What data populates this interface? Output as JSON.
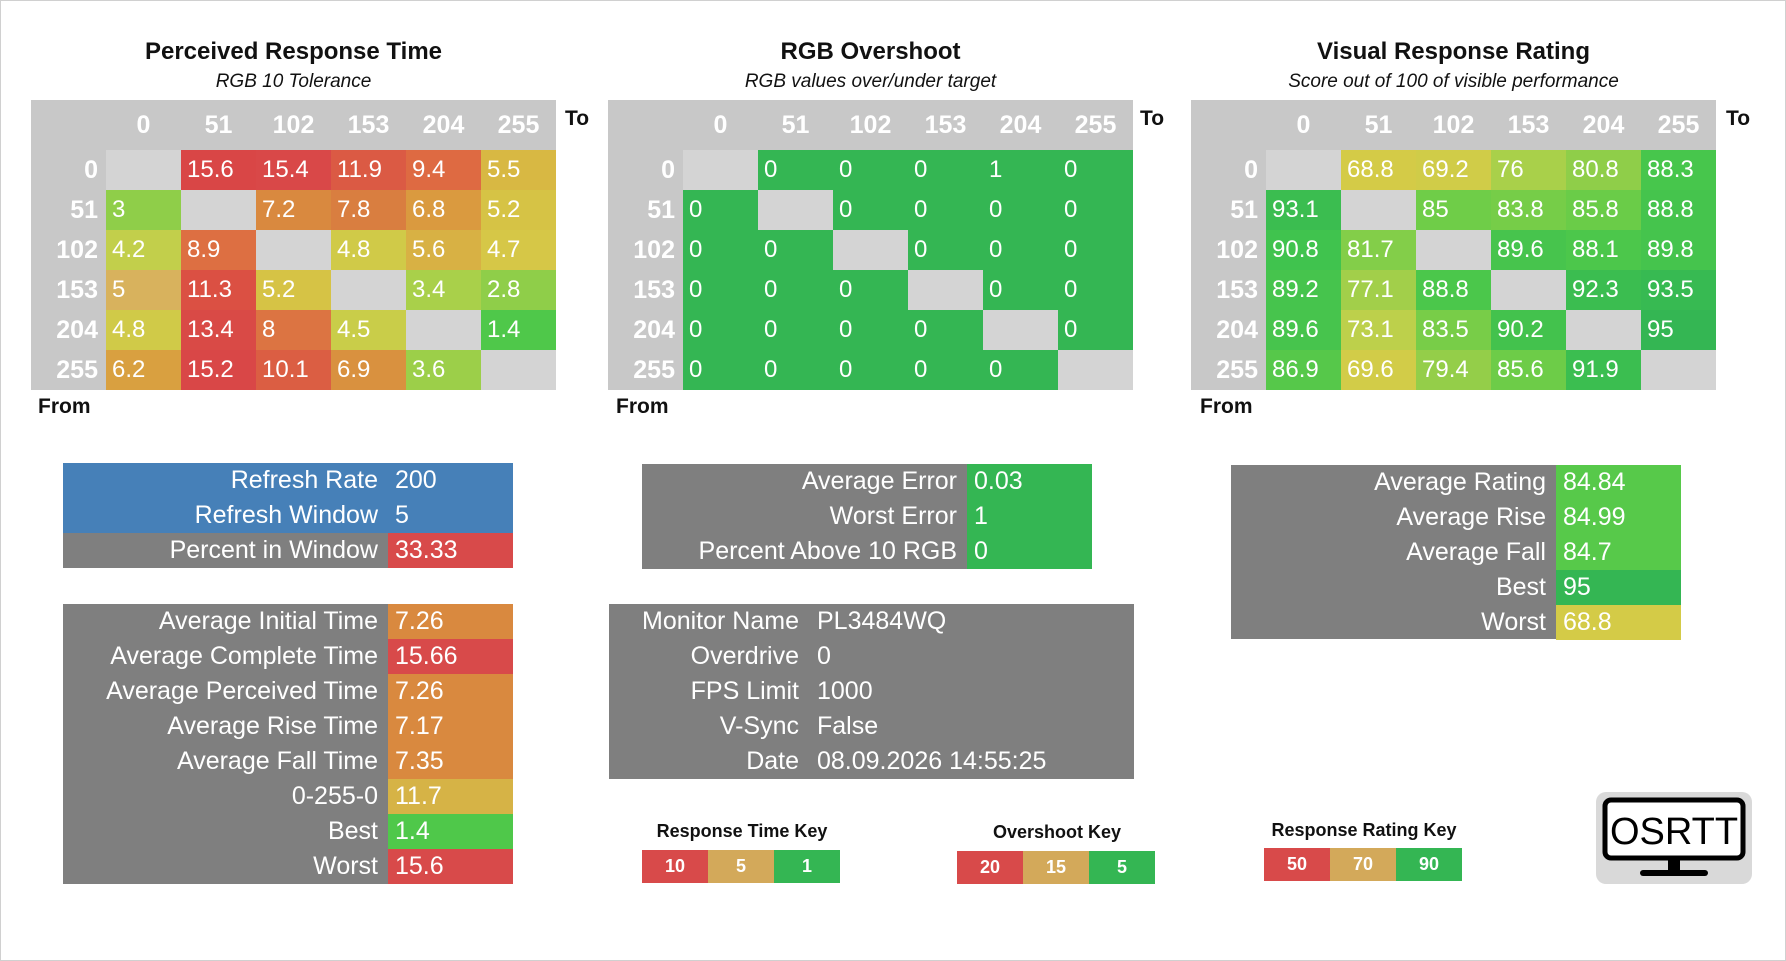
{
  "colors": {
    "red": "#d84a4a",
    "orange_red": "#de6a42",
    "orange": "#d9893f",
    "amber": "#d3a345",
    "yellow": "#d6cb47",
    "yellow_green": "#c2cf4b",
    "light_green": "#8fce49",
    "green": "#57c94a",
    "deep_green": "#34b653",
    "blue": "#4680b8",
    "grey": "#7f7f7f",
    "diag": "#d4d4d4"
  },
  "heatmaps": [
    {
      "title": "Perceived Response Time",
      "subtitle": "RGB 10 Tolerance",
      "to_label": "To",
      "from_label": "From",
      "headers": [
        "0",
        "51",
        "102",
        "153",
        "204",
        "255"
      ],
      "rows": [
        [
          "",
          "15.6",
          "15.4",
          "11.9",
          "9.4",
          "5.5"
        ],
        [
          "3",
          "",
          "7.2",
          "7.8",
          "6.8",
          "5.2"
        ],
        [
          "4.2",
          "8.9",
          "",
          "4.8",
          "5.6",
          "4.7"
        ],
        [
          "5",
          "11.3",
          "5.2",
          "",
          "3.4",
          "2.8"
        ],
        [
          "4.8",
          "13.4",
          "8",
          "4.5",
          "",
          "1.4"
        ],
        [
          "6.2",
          "15.2",
          "10.1",
          "6.9",
          "3.6",
          ""
        ]
      ],
      "cell_colors": [
        [
          "diag",
          "#d94646",
          "#d94848",
          "#db5a44",
          "#de6a42",
          "#d8b843"
        ],
        [
          "#8fce49",
          "diag",
          "#d9893f",
          "#d97e40",
          "#da9a3f",
          "#d6c345"
        ],
        [
          "#c2cf4b",
          "#dd6f42",
          "diag",
          "#d0ca48",
          "#d8b144",
          "#d6c747"
        ],
        [
          "#d8b25d",
          "#db5043",
          "#d6c345",
          "diag",
          "#a9d04a",
          "#8fce49"
        ],
        [
          "#d0ca48",
          "#d94a46",
          "#dc7442",
          "#c9cd49",
          "diag",
          "#4fc84a"
        ],
        [
          "#d9a040",
          "#d94747",
          "#db5e43",
          "#d9913f",
          "#9ccf49",
          "diag"
        ]
      ]
    },
    {
      "title": "RGB Overshoot",
      "subtitle": "RGB values over/under target",
      "to_label": "To",
      "from_label": "From",
      "headers": [
        "0",
        "51",
        "102",
        "153",
        "204",
        "255"
      ],
      "rows": [
        [
          "",
          "0",
          "0",
          "0",
          "1",
          "0"
        ],
        [
          "0",
          "",
          "0",
          "0",
          "0",
          "0"
        ],
        [
          "0",
          "0",
          "",
          "0",
          "0",
          "0"
        ],
        [
          "0",
          "0",
          "0",
          "",
          "0",
          "0"
        ],
        [
          "0",
          "0",
          "0",
          "0",
          "",
          "0"
        ],
        [
          "0",
          "0",
          "0",
          "0",
          "0",
          ""
        ]
      ],
      "cell_colors": [
        [
          "diag",
          "#34b653",
          "#34b653",
          "#34b653",
          "#34b653",
          "#34b653"
        ],
        [
          "#34b653",
          "diag",
          "#34b653",
          "#34b653",
          "#34b653",
          "#34b653"
        ],
        [
          "#34b653",
          "#34b653",
          "diag",
          "#34b653",
          "#34b653",
          "#34b653"
        ],
        [
          "#34b653",
          "#34b653",
          "#34b653",
          "diag",
          "#34b653",
          "#34b653"
        ],
        [
          "#34b653",
          "#34b653",
          "#34b653",
          "#34b653",
          "diag",
          "#34b653"
        ],
        [
          "#34b653",
          "#34b653",
          "#34b653",
          "#34b653",
          "#34b653",
          "diag"
        ]
      ]
    },
    {
      "title": "Visual Response Rating",
      "subtitle": "Score out of 100 of visible performance",
      "to_label": "To",
      "from_label": "From",
      "headers": [
        "0",
        "51",
        "102",
        "153",
        "204",
        "255"
      ],
      "rows": [
        [
          "",
          "68.8",
          "69.2",
          "76",
          "80.8",
          "88.3"
        ],
        [
          "93.1",
          "",
          "85",
          "83.8",
          "85.8",
          "88.8"
        ],
        [
          "90.8",
          "81.7",
          "",
          "89.6",
          "88.1",
          "89.8"
        ],
        [
          "89.2",
          "77.1",
          "88.8",
          "",
          "92.3",
          "93.5"
        ],
        [
          "89.6",
          "73.1",
          "83.5",
          "90.2",
          "",
          "95"
        ],
        [
          "86.9",
          "69.6",
          "79.4",
          "85.6",
          "91.9",
          ""
        ]
      ],
      "cell_colors": [
        [
          "diag",
          "#d4cb47",
          "#d0cc48",
          "#a9d04a",
          "#8fce49",
          "#47c64c"
        ],
        [
          "#3bbd50",
          "diag",
          "#6fcd48",
          "#76cd48",
          "#6acc48",
          "#45c44d"
        ],
        [
          "#40c34e",
          "#83ce49",
          "diag",
          "#47c44d",
          "#4cc74b",
          "#45c44d"
        ],
        [
          "#46c44d",
          "#a2cf4a",
          "#4bc74b",
          "diag",
          "#3bbd50",
          "#37ba52"
        ],
        [
          "#47c44d",
          "#bdd04b",
          "#78cd48",
          "#43c24d",
          "diag",
          "#34b653"
        ],
        [
          "#56c84a",
          "#d2cc48",
          "#94ce49",
          "#6dcc48",
          "#3bbe50",
          "diag"
        ]
      ]
    }
  ],
  "refresh_box": {
    "rows": [
      {
        "label": "Refresh Rate",
        "value": "200",
        "bg": "#4680b8",
        "vbg": "#4680b8"
      },
      {
        "label": "Refresh Window",
        "value": "5",
        "bg": "#4680b8",
        "vbg": "#4680b8"
      },
      {
        "label": "Percent in Window",
        "value": "33.33",
        "bg": "#7f7f7f",
        "vbg": "#d84a4a"
      }
    ]
  },
  "times_box": {
    "rows": [
      {
        "label": "Average Initial Time",
        "value": "7.26",
        "vbg": "#d9893f"
      },
      {
        "label": "Average Complete Time",
        "value": "15.66",
        "vbg": "#d84a4a"
      },
      {
        "label": "Average Perceived Time",
        "value": "7.26",
        "vbg": "#d9893f"
      },
      {
        "label": "Average Rise Time",
        "value": "7.17",
        "vbg": "#d9893f"
      },
      {
        "label": "Average Fall Time",
        "value": "7.35",
        "vbg": "#d9893f"
      },
      {
        "label": "0-255-0",
        "value": "11.7",
        "vbg": "#d6b346"
      },
      {
        "label": "Best",
        "value": "1.4",
        "vbg": "#4fc84a"
      },
      {
        "label": "Worst",
        "value": "15.6",
        "vbg": "#d84a4a"
      }
    ]
  },
  "error_box": {
    "rows": [
      {
        "label": "Average Error",
        "value": "0.03",
        "vbg": "#34b653"
      },
      {
        "label": "Worst Error",
        "value": "1",
        "vbg": "#34b653"
      },
      {
        "label": "Percent Above 10 RGB",
        "value": "0",
        "vbg": "#34b653"
      }
    ]
  },
  "monitor_box": {
    "rows": [
      {
        "label": "Monitor Name",
        "value": "PL3484WQ"
      },
      {
        "label": "Overdrive",
        "value": "0"
      },
      {
        "label": "FPS Limit",
        "value": "1000"
      },
      {
        "label": "V-Sync",
        "value": "False"
      },
      {
        "label": "Date",
        "value": "08.09.2026 14:55:25"
      }
    ]
  },
  "rating_box": {
    "rows": [
      {
        "label": "Average Rating",
        "value": "84.84",
        "vbg": "#57c94a"
      },
      {
        "label": "Average Rise",
        "value": "84.99",
        "vbg": "#57c94a"
      },
      {
        "label": "Average Fall",
        "value": "84.7",
        "vbg": "#57c94a"
      },
      {
        "label": "Best",
        "value": "95",
        "vbg": "#34b653"
      },
      {
        "label": "Worst",
        "value": "68.8",
        "vbg": "#d4cb47"
      }
    ]
  },
  "keys": [
    {
      "title": "Response Time Key",
      "items": [
        {
          "label": "10",
          "color": "#d84a4a"
        },
        {
          "label": "5",
          "color": "#d3a95a"
        },
        {
          "label": "1",
          "color": "#34b653"
        }
      ]
    },
    {
      "title": "Overshoot Key",
      "items": [
        {
          "label": "20",
          "color": "#d84a4a"
        },
        {
          "label": "15",
          "color": "#d3a95a"
        },
        {
          "label": "5",
          "color": "#34b653"
        }
      ]
    },
    {
      "title": "Response Rating Key",
      "items": [
        {
          "label": "50",
          "color": "#d84a4a"
        },
        {
          "label": "70",
          "color": "#d3a95a"
        },
        {
          "label": "90",
          "color": "#34b653"
        }
      ]
    }
  ],
  "logo": {
    "text": "OSRTT",
    "icon": "monitor-icon"
  }
}
